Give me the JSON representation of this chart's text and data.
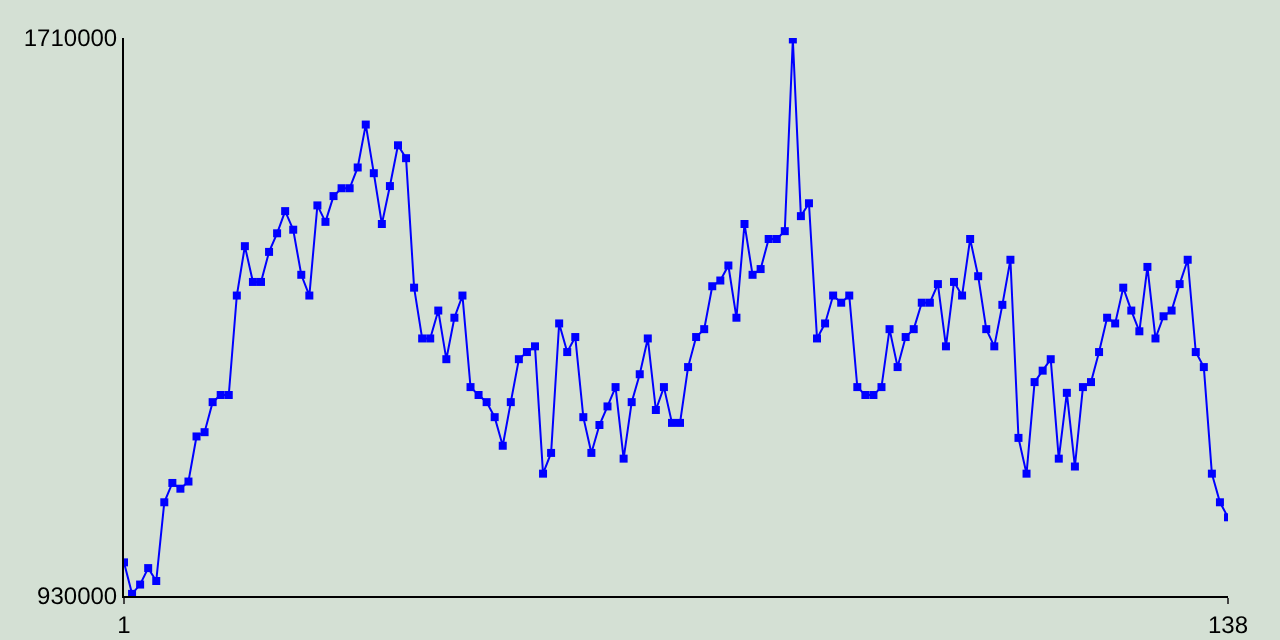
{
  "chart_data": {
    "type": "line",
    "x": [
      1,
      2,
      3,
      4,
      5,
      6,
      7,
      8,
      9,
      10,
      11,
      12,
      13,
      14,
      15,
      16,
      17,
      18,
      19,
      20,
      21,
      22,
      23,
      24,
      25,
      26,
      27,
      28,
      29,
      30,
      31,
      32,
      33,
      34,
      35,
      36,
      37,
      38,
      39,
      40,
      41,
      42,
      43,
      44,
      45,
      46,
      47,
      48,
      49,
      50,
      51,
      52,
      53,
      54,
      55,
      56,
      57,
      58,
      59,
      60,
      61,
      62,
      63,
      64,
      65,
      66,
      67,
      68,
      69,
      70,
      71,
      72,
      73,
      74,
      75,
      76,
      77,
      78,
      79,
      80,
      81,
      82,
      83,
      84,
      85,
      86,
      87,
      88,
      89,
      90,
      91,
      92,
      93,
      94,
      95,
      96,
      97,
      98,
      99,
      100,
      101,
      102,
      103,
      104,
      105,
      106,
      107,
      108,
      109,
      110,
      111,
      112,
      113,
      114,
      115,
      116,
      117,
      118,
      119,
      120,
      121,
      122,
      123,
      124,
      125,
      126,
      127,
      128,
      129,
      130,
      131,
      132,
      133,
      134,
      135,
      136,
      137,
      138
    ],
    "series": [
      {
        "color": "#0000ff",
        "values": [
          977000,
          933000,
          946000,
          969000,
          951000,
          1061000,
          1088000,
          1080000,
          1090000,
          1153000,
          1159000,
          1201000,
          1211000,
          1211000,
          1350000,
          1419000,
          1369000,
          1369000,
          1411000,
          1437000,
          1468000,
          1442000,
          1379000,
          1350000,
          1476000,
          1453000,
          1489000,
          1500000,
          1500000,
          1529000,
          1589000,
          1521000,
          1450000,
          1503000,
          1560000,
          1542000,
          1361000,
          1290000,
          1290000,
          1329000,
          1261000,
          1319000,
          1350000,
          1222000,
          1211000,
          1201000,
          1180000,
          1140000,
          1201000,
          1261000,
          1271000,
          1279000,
          1101000,
          1130000,
          1311000,
          1271000,
          1292000,
          1180000,
          1130000,
          1169000,
          1195000,
          1222000,
          1122000,
          1201000,
          1240000,
          1290000,
          1190000,
          1222000,
          1172000,
          1172000,
          1250000,
          1292000,
          1303000,
          1363000,
          1371000,
          1392000,
          1319000,
          1450000,
          1379000,
          1387000,
          1429000,
          1429000,
          1440000,
          1708000,
          1461000,
          1479000,
          1290000,
          1311000,
          1350000,
          1340000,
          1350000,
          1222000,
          1211000,
          1211000,
          1222000,
          1303000,
          1250000,
          1292000,
          1303000,
          1340000,
          1340000,
          1366000,
          1279000,
          1369000,
          1350000,
          1429000,
          1377000,
          1303000,
          1279000,
          1337000,
          1400000,
          1151000,
          1101000,
          1229000,
          1245000,
          1261000,
          1122000,
          1214000,
          1111000,
          1222000,
          1229000,
          1271000,
          1319000,
          1311000,
          1361000,
          1329000,
          1300000,
          1390000,
          1290000,
          1321000,
          1329000,
          1366000,
          1400000,
          1271000,
          1250000,
          1101000,
          1061000,
          1040000
        ]
      }
    ],
    "xlim": [
      1,
      138
    ],
    "xticks": [
      1,
      138
    ],
    "ylim": [
      930000,
      1710000
    ],
    "yticks": [
      930000,
      1710000
    ],
    "marker": "square",
    "line_style": "solid"
  }
}
